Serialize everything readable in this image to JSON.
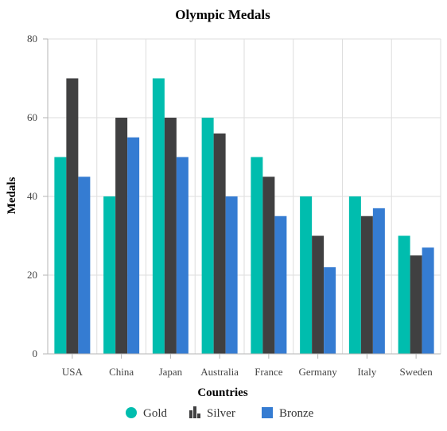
{
  "chart_data": {
    "type": "bar",
    "title": "Olympic Medals",
    "xlabel": "Countries",
    "ylabel": "Medals",
    "ylim": [
      0,
      80
    ],
    "yticks": [
      0,
      20,
      40,
      60,
      80
    ],
    "grid": true,
    "legend_position": "bottom",
    "categories": [
      "USA",
      "China",
      "Japan",
      "Australia",
      "France",
      "Germany",
      "Italy",
      "Sweden"
    ],
    "series": [
      {
        "name": "Gold",
        "values": [
          50,
          40,
          70,
          60,
          50,
          40,
          40,
          30
        ],
        "color": "#00bdae",
        "legend_icon": "circle-icon"
      },
      {
        "name": "Silver",
        "values": [
          70,
          60,
          60,
          56,
          45,
          30,
          35,
          25
        ],
        "color": "#404041",
        "legend_icon": "bar-chart-icon"
      },
      {
        "name": "Bronze",
        "values": [
          45,
          55,
          50,
          40,
          35,
          22,
          37,
          27
        ],
        "color": "#357cd2",
        "legend_icon": "square-icon"
      }
    ]
  }
}
